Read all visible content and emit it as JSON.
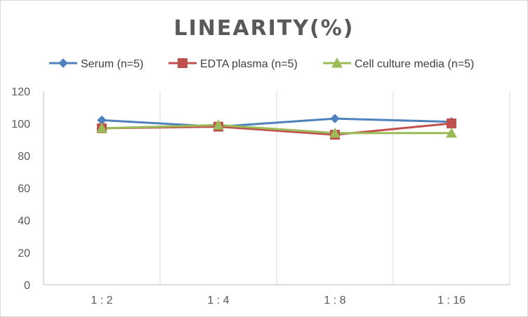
{
  "chart_data": {
    "type": "line",
    "title": "LINEARITY(%)",
    "categories": [
      "1 : 2",
      "1 : 4",
      "1 : 8",
      "1 : 16"
    ],
    "ylim": [
      0,
      120
    ],
    "yticks": [
      0,
      20,
      40,
      60,
      80,
      100,
      120
    ],
    "grid": "vertical category lines",
    "legend_position": "top",
    "series": [
      {
        "name": "Serum (n=5)",
        "values": [
          102,
          98,
          103,
          101
        ],
        "color": "#4f81bd",
        "marker": "diamond"
      },
      {
        "name": "EDTA plasma (n=5)",
        "values": [
          97,
          98,
          93,
          100
        ],
        "color": "#c0504d",
        "marker": "square"
      },
      {
        "name": "Cell culture media (n=5)",
        "values": [
          97,
          99,
          94,
          94
        ],
        "color": "#9bbb59",
        "marker": "triangle"
      }
    ]
  }
}
